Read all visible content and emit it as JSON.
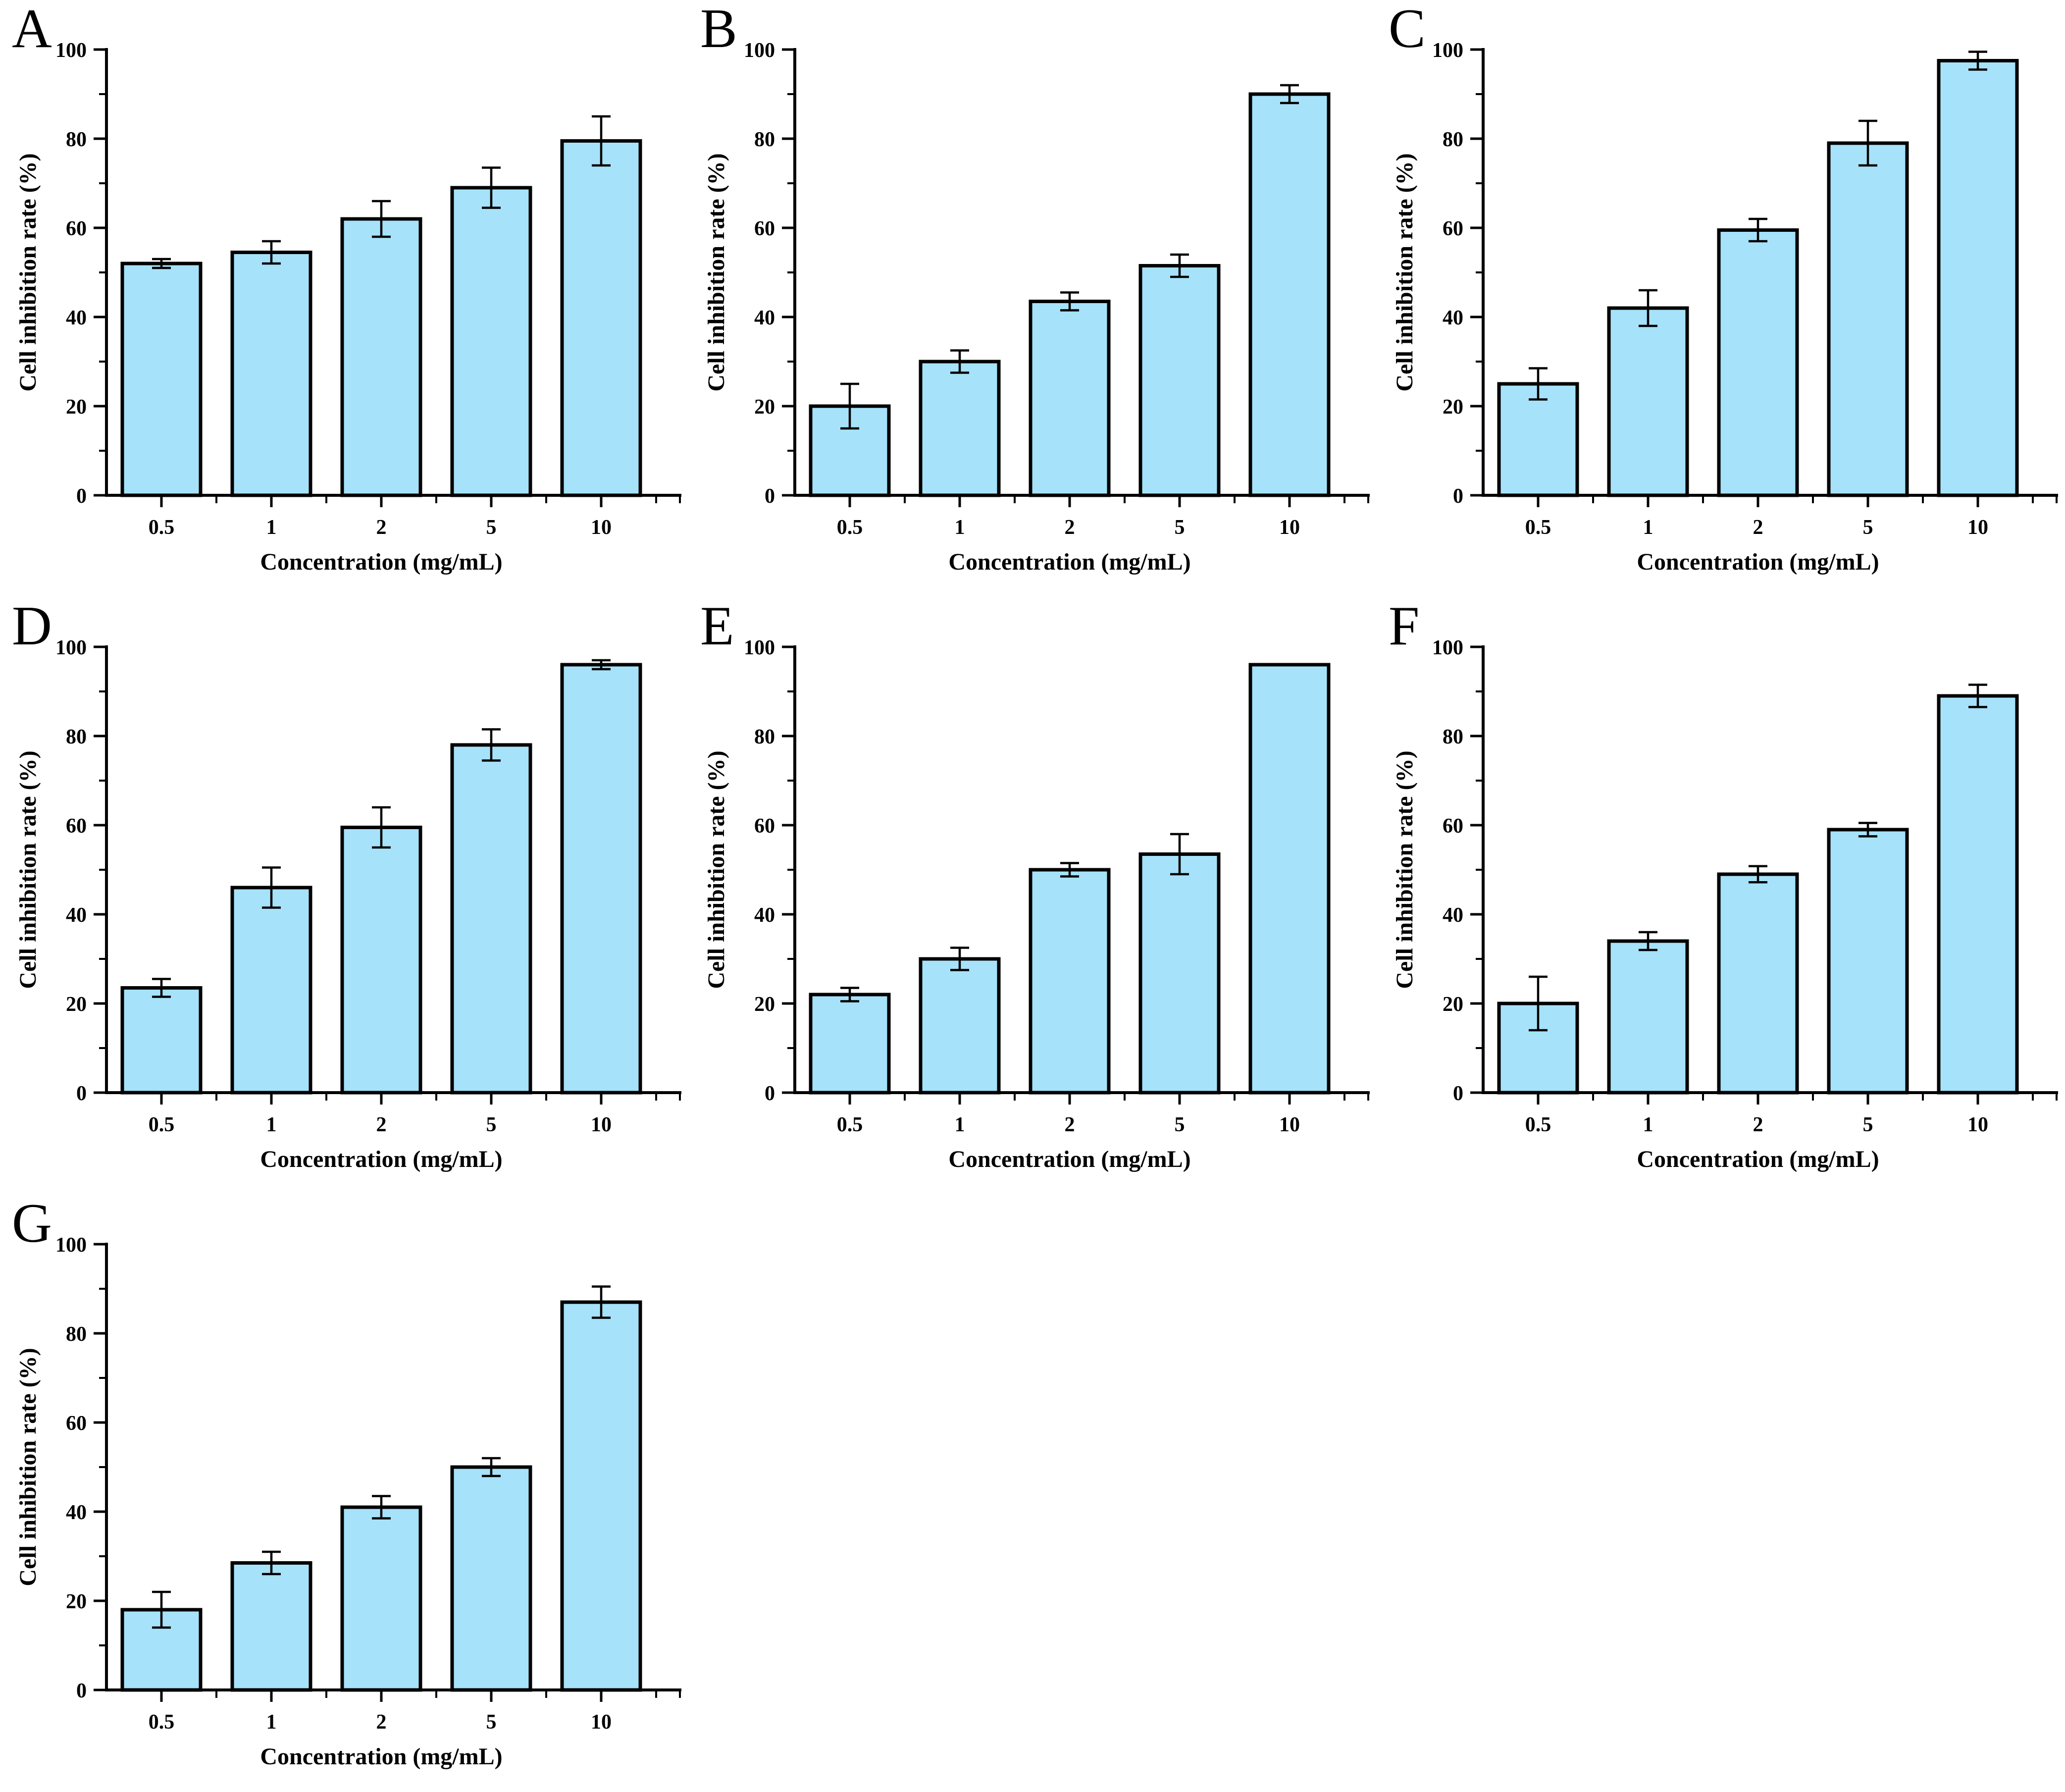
{
  "figure": {
    "bar_fill": "#A6E2FA",
    "bar_stroke": "#000000",
    "axis_color": "#000000",
    "background": "#ffffff"
  },
  "chart_data": [
    {
      "type": "bar",
      "panel": "A",
      "categories": [
        "0.5",
        "1",
        "2",
        "5",
        "10"
      ],
      "values": [
        52,
        54.5,
        62,
        69,
        79.5
      ],
      "errors": [
        1,
        2.5,
        4,
        4.5,
        5.5
      ],
      "xlabel": "Concentration (mg/mL)",
      "ylabel": "Cell inhibition rate (%)",
      "ylim": [
        0,
        100
      ],
      "ytick_major": 20,
      "ytick_minor": 10
    },
    {
      "type": "bar",
      "panel": "B",
      "categories": [
        "0.5",
        "1",
        "2",
        "5",
        "10"
      ],
      "values": [
        20,
        30,
        43.5,
        51.5,
        90
      ],
      "errors": [
        5,
        2.5,
        2,
        2.5,
        2
      ],
      "xlabel": "Concentration (mg/mL)",
      "ylabel": "Cell inhibition rate (%)",
      "ylim": [
        0,
        100
      ],
      "ytick_major": 20,
      "ytick_minor": 10
    },
    {
      "type": "bar",
      "panel": "C",
      "categories": [
        "0.5",
        "1",
        "2",
        "5",
        "10"
      ],
      "values": [
        25,
        42,
        59.5,
        79,
        97.5
      ],
      "errors": [
        3.5,
        4,
        2.5,
        5,
        2
      ],
      "xlabel": "Concentration (mg/mL)",
      "ylabel": "Cell inhibition rate (%)",
      "ylim": [
        0,
        100
      ],
      "ytick_major": 20,
      "ytick_minor": 10
    },
    {
      "type": "bar",
      "panel": "D",
      "categories": [
        "0.5",
        "1",
        "2",
        "5",
        "10"
      ],
      "values": [
        23.5,
        46,
        59.5,
        78,
        96
      ],
      "errors": [
        2,
        4.5,
        4.5,
        3.5,
        1
      ],
      "xlabel": "Concentration (mg/mL)",
      "ylabel": "Cell inhibition rate (%)",
      "ylim": [
        0,
        100
      ],
      "ytick_major": 20,
      "ytick_minor": 10
    },
    {
      "type": "bar",
      "panel": "E",
      "categories": [
        "0.5",
        "1",
        "2",
        "5",
        "10"
      ],
      "values": [
        22,
        30,
        50,
        53.5,
        96
      ],
      "errors": [
        1.5,
        2.5,
        1.5,
        4.5,
        0
      ],
      "xlabel": "Concentration (mg/mL)",
      "ylabel": "Cell inhibition rate (%)",
      "ylim": [
        0,
        100
      ],
      "ytick_major": 20,
      "ytick_minor": 10
    },
    {
      "type": "bar",
      "panel": "F",
      "categories": [
        "0.5",
        "1",
        "2",
        "5",
        "10"
      ],
      "values": [
        20,
        34,
        49,
        59,
        89
      ],
      "errors": [
        6,
        2,
        1.8,
        1.5,
        2.5
      ],
      "xlabel": "Concentration (mg/mL)",
      "ylabel": "Cell inhibition rate (%)",
      "ylim": [
        0,
        100
      ],
      "ytick_major": 20,
      "ytick_minor": 10
    },
    {
      "type": "bar",
      "panel": "G",
      "categories": [
        "0.5",
        "1",
        "2",
        "5",
        "10"
      ],
      "values": [
        18,
        28.5,
        41,
        50,
        87
      ],
      "errors": [
        4,
        2.5,
        2.5,
        2,
        3.5
      ],
      "xlabel": "Concentration (mg/mL)",
      "ylabel": "Cell inhibition rate (%)",
      "ylim": [
        0,
        100
      ],
      "ytick_major": 20,
      "ytick_minor": 10
    }
  ]
}
